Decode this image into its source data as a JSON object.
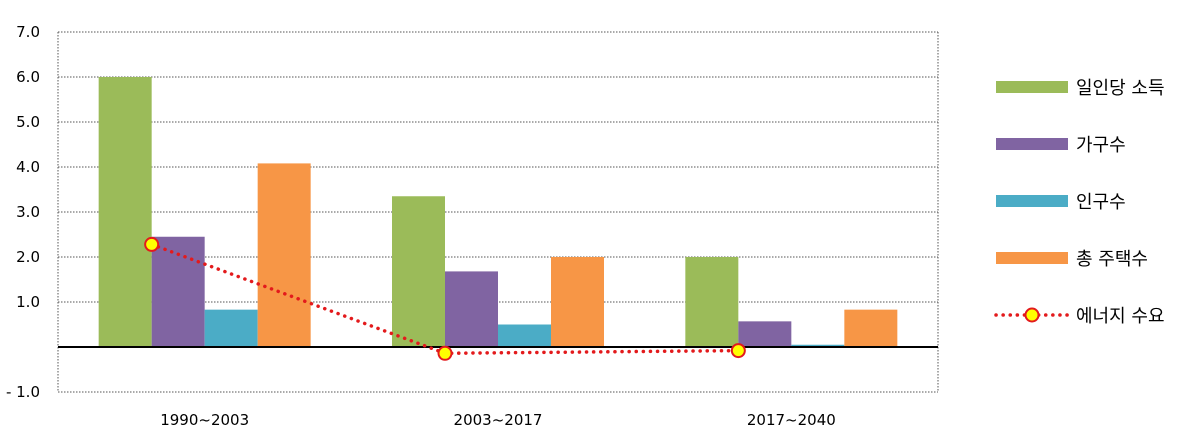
{
  "chart_data": {
    "type": "bar",
    "categories": [
      "1990~2003",
      "2003~2017",
      "2017~2040"
    ],
    "y_ticks": [
      {
        "value": -1,
        "label": "- 1.0"
      },
      {
        "value": 0,
        "label": ""
      },
      {
        "value": 1,
        "label": "1.0"
      },
      {
        "value": 2,
        "label": "2.0"
      },
      {
        "value": 3,
        "label": "3.0"
      },
      {
        "value": 4,
        "label": "4.0"
      },
      {
        "value": 5,
        "label": "5.0"
      },
      {
        "value": 6,
        "label": "6.0"
      },
      {
        "value": 7,
        "label": "7.0"
      }
    ],
    "ylim": [
      -1,
      7
    ],
    "grid": true,
    "legend_position": "right",
    "series": [
      {
        "name": "일인당 소득",
        "type": "bar",
        "color": "#9bbb59",
        "values": [
          6.0,
          3.35,
          2.0
        ]
      },
      {
        "name": "가구수",
        "type": "bar",
        "color": "#8064a2",
        "values": [
          2.45,
          1.68,
          0.57
        ]
      },
      {
        "name": "인구수",
        "type": "bar",
        "color": "#4bacc6",
        "values": [
          0.83,
          0.5,
          0.05
        ]
      },
      {
        "name": "총 주택수",
        "type": "bar",
        "color": "#f79646",
        "values": [
          4.08,
          2.0,
          0.83
        ]
      },
      {
        "name": "에너지 수요",
        "type": "line",
        "color": "#e31a1c",
        "marker_color": "#ffff00",
        "values": [
          2.28,
          -0.14,
          -0.08
        ]
      }
    ]
  }
}
